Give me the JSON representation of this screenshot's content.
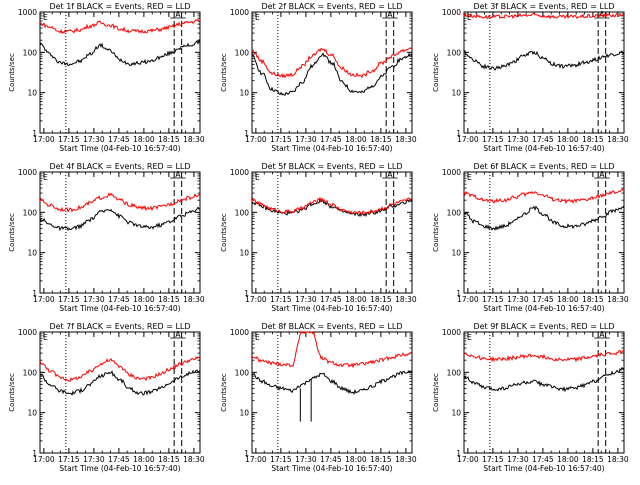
{
  "figure": {
    "background": "#ffffff",
    "colors": {
      "events": "#000000",
      "lld": "#ff0000",
      "axes": "#000000"
    },
    "x_ticks": [
      "17:00",
      "17:15",
      "17:30",
      "17:45",
      "18:00",
      "18:15",
      "18:30"
    ],
    "y_ticks": [
      "1",
      "10",
      "100",
      "1000"
    ],
    "ylabel": "Counts/sec",
    "xlabel": "Start Time (04-Feb-10 16:57:40)",
    "corner_mark": "E",
    "top_mark": "A",
    "top_mark_right": "E",
    "panels_note": "3x3 grid of detector count-rate time series"
  },
  "chart_data": [
    {
      "type": "line",
      "title": "Det 1f BLACK = Events, RED = LLD",
      "xlabel": "Start Time (04-Feb-10 16:57:40)",
      "ylabel": "Counts/sec",
      "x_unit": "minutes after 16:57:40",
      "xlim": [
        0,
        96
      ],
      "ylim": [
        1,
        1000
      ],
      "yscale": "log",
      "x": [
        0,
        6,
        12,
        18,
        24,
        30,
        36,
        42,
        48,
        54,
        60,
        66,
        72,
        78,
        84,
        90,
        96
      ],
      "series": [
        {
          "name": "BLACK = Events",
          "color": "#000000",
          "values": [
            160,
            90,
            55,
            52,
            60,
            90,
            150,
            110,
            65,
            52,
            55,
            60,
            75,
            95,
            130,
            150,
            180
          ]
        },
        {
          "name": "RED = LLD",
          "color": "#ff0000",
          "values": [
            520,
            420,
            330,
            330,
            360,
            450,
            540,
            470,
            380,
            340,
            330,
            340,
            370,
            420,
            500,
            560,
            620
          ]
        }
      ],
      "vlines": [
        {
          "x": 15.5,
          "style": "dotted"
        },
        {
          "x": 80.5,
          "style": "dashed"
        },
        {
          "x": 85,
          "style": "dashed"
        }
      ]
    },
    {
      "type": "line",
      "title": "Det 2f BLACK = Events, RED = LLD",
      "xlabel": "Start Time (04-Feb-10 16:57:40)",
      "ylabel": "Counts/sec",
      "x_unit": "minutes after 16:57:40",
      "xlim": [
        0,
        96
      ],
      "ylim": [
        1,
        1000
      ],
      "yscale": "log",
      "x": [
        0,
        6,
        12,
        18,
        24,
        30,
        36,
        42,
        48,
        54,
        60,
        66,
        72,
        78,
        84,
        90,
        96
      ],
      "series": [
        {
          "name": "BLACK = Events",
          "color": "#000000",
          "values": [
            80,
            30,
            12,
            9,
            10,
            18,
            45,
            90,
            55,
            18,
            11,
            10,
            15,
            25,
            45,
            70,
            90
          ]
        },
        {
          "name": "RED = LLD",
          "color": "#ff0000",
          "values": [
            110,
            60,
            30,
            26,
            28,
            45,
            80,
            120,
            85,
            40,
            28,
            26,
            35,
            55,
            80,
            110,
            130
          ]
        }
      ],
      "vlines": [
        {
          "x": 15.5,
          "style": "dotted"
        },
        {
          "x": 80.5,
          "style": "dashed"
        },
        {
          "x": 85,
          "style": "dashed"
        }
      ]
    },
    {
      "type": "line",
      "title": "Det 3f BLACK = Events, RED = LLD",
      "xlabel": "Start Time (04-Feb-10 16:57:40)",
      "ylabel": "Counts/sec",
      "x_unit": "minutes after 16:57:40",
      "xlim": [
        0,
        96
      ],
      "ylim": [
        1,
        1000
      ],
      "yscale": "log",
      "x": [
        0,
        6,
        12,
        18,
        24,
        30,
        36,
        42,
        48,
        54,
        60,
        66,
        72,
        78,
        84,
        90,
        96
      ],
      "series": [
        {
          "name": "BLACK = Events",
          "color": "#000000",
          "values": [
            100,
            65,
            45,
            40,
            45,
            60,
            85,
            100,
            70,
            50,
            45,
            48,
            55,
            65,
            80,
            90,
            100
          ]
        },
        {
          "name": "RED = LLD",
          "color": "#ff0000",
          "values": [
            850,
            800,
            760,
            750,
            770,
            790,
            820,
            840,
            800,
            760,
            750,
            760,
            780,
            800,
            820,
            830,
            850
          ]
        }
      ],
      "vlines": [
        {
          "x": 15.5,
          "style": "dotted"
        },
        {
          "x": 80.5,
          "style": "dashed"
        },
        {
          "x": 85,
          "style": "dashed"
        }
      ]
    },
    {
      "type": "line",
      "title": "Det 4f BLACK = Events, RED = LLD",
      "xlabel": "Start Time (04-Feb-10 16:57:40)",
      "ylabel": "Counts/sec",
      "x_unit": "minutes after 16:57:40",
      "xlim": [
        0,
        96
      ],
      "ylim": [
        1,
        1000
      ],
      "yscale": "log",
      "x": [
        0,
        6,
        12,
        18,
        24,
        30,
        36,
        42,
        48,
        54,
        60,
        66,
        72,
        78,
        84,
        90,
        96
      ],
      "series": [
        {
          "name": "BLACK = Events",
          "color": "#000000",
          "values": [
            70,
            50,
            40,
            38,
            45,
            65,
            100,
            120,
            80,
            55,
            45,
            42,
            48,
            60,
            80,
            100,
            130
          ]
        },
        {
          "name": "RED = LLD",
          "color": "#ff0000",
          "values": [
            200,
            150,
            120,
            115,
            130,
            170,
            230,
            270,
            200,
            150,
            130,
            125,
            135,
            160,
            200,
            230,
            280
          ]
        }
      ],
      "vlines": [
        {
          "x": 15.5,
          "style": "dotted"
        },
        {
          "x": 80.5,
          "style": "dashed"
        },
        {
          "x": 85,
          "style": "dashed"
        }
      ]
    },
    {
      "type": "line",
      "title": "Det 5f BLACK = Events, RED = LLD",
      "xlabel": "Start Time (04-Feb-10 16:57:40)",
      "ylabel": "Counts/sec",
      "x_unit": "minutes after 16:57:40",
      "xlim": [
        0,
        96
      ],
      "ylim": [
        1,
        1000
      ],
      "yscale": "log",
      "x": [
        0,
        6,
        12,
        18,
        24,
        30,
        36,
        42,
        48,
        54,
        60,
        66,
        72,
        78,
        84,
        90,
        96
      ],
      "series": [
        {
          "name": "BLACK = Events",
          "color": "#000000",
          "values": [
            180,
            140,
            110,
            95,
            95,
            115,
            160,
            190,
            140,
            105,
            90,
            88,
            95,
            110,
            140,
            170,
            200
          ]
        },
        {
          "name": "RED = LLD",
          "color": "#ff0000",
          "values": [
            200,
            155,
            120,
            105,
            105,
            125,
            175,
            210,
            155,
            115,
            100,
            98,
            105,
            125,
            155,
            185,
            220
          ]
        }
      ],
      "vlines": [
        {
          "x": 15.5,
          "style": "dotted"
        },
        {
          "x": 80.5,
          "style": "dashed"
        },
        {
          "x": 85,
          "style": "dashed"
        }
      ]
    },
    {
      "type": "line",
      "title": "Det 6f BLACK = Events, RED = LLD",
      "xlabel": "Start Time (04-Feb-10 16:57:40)",
      "ylabel": "Counts/sec",
      "x_unit": "minutes after 16:57:40",
      "xlim": [
        0,
        96
      ],
      "ylim": [
        1,
        1000
      ],
      "yscale": "log",
      "x": [
        0,
        6,
        12,
        18,
        24,
        30,
        36,
        42,
        48,
        54,
        60,
        66,
        72,
        78,
        84,
        90,
        96
      ],
      "series": [
        {
          "name": "BLACK = Events",
          "color": "#000000",
          "values": [
            100,
            60,
            45,
            40,
            45,
            60,
            90,
            130,
            90,
            55,
            45,
            45,
            50,
            65,
            85,
            110,
            140
          ]
        },
        {
          "name": "RED = LLD",
          "color": "#ff0000",
          "values": [
            300,
            250,
            200,
            190,
            200,
            230,
            280,
            320,
            260,
            210,
            190,
            190,
            200,
            230,
            270,
            310,
            350
          ]
        }
      ],
      "vlines": [
        {
          "x": 15.5,
          "style": "dotted"
        },
        {
          "x": 80.5,
          "style": "dashed"
        },
        {
          "x": 85,
          "style": "dashed"
        }
      ]
    },
    {
      "type": "line",
      "title": "Det 7f BLACK = Events, RED = LLD",
      "xlabel": "Start Time (04-Feb-10 16:57:40)",
      "ylabel": "Counts/sec",
      "x_unit": "minutes after 16:57:40",
      "xlim": [
        0,
        96
      ],
      "ylim": [
        1,
        1000
      ],
      "yscale": "log",
      "x": [
        0,
        6,
        12,
        18,
        24,
        30,
        36,
        42,
        48,
        54,
        60,
        66,
        72,
        78,
        84,
        90,
        96
      ],
      "series": [
        {
          "name": "BLACK = Events",
          "color": "#000000",
          "values": [
            90,
            50,
            35,
            30,
            35,
            50,
            80,
            100,
            65,
            38,
            30,
            32,
            40,
            55,
            75,
            95,
            110
          ]
        },
        {
          "name": "RED = LLD",
          "color": "#ff0000",
          "values": [
            180,
            110,
            75,
            65,
            75,
            105,
            160,
            200,
            140,
            85,
            70,
            72,
            90,
            120,
            160,
            200,
            230
          ]
        }
      ],
      "vlines": [
        {
          "x": 15.5,
          "style": "dotted"
        },
        {
          "x": 80.5,
          "style": "dashed"
        },
        {
          "x": 85,
          "style": "dashed"
        }
      ]
    },
    {
      "type": "line",
      "title": "Det 8f BLACK = Events, RED = LLD",
      "xlabel": "Start Time (04-Feb-10 16:57:40)",
      "ylabel": "Counts/sec",
      "x_unit": "minutes after 16:57:40",
      "xlim": [
        0,
        96
      ],
      "ylim": [
        1,
        1000
      ],
      "yscale": "log",
      "x": [
        0,
        6,
        12,
        18,
        24,
        30,
        36,
        42,
        48,
        54,
        60,
        66,
        72,
        78,
        84,
        90,
        96
      ],
      "series": [
        {
          "name": "BLACK = Events",
          "color": "#000000",
          "values": [
            90,
            60,
            45,
            40,
            35,
            50,
            70,
            90,
            60,
            40,
            32,
            35,
            45,
            60,
            80,
            95,
            110
          ]
        },
        {
          "name": "RED = LLD",
          "color": "#ff0000",
          "values": [
            250,
            190,
            170,
            160,
            150,
            1000,
            1000,
            220,
            170,
            150,
            150,
            160,
            180,
            200,
            240,
            270,
            300
          ]
        }
      ],
      "spikes": [
        {
          "x": 29,
          "from": 40,
          "to": 6,
          "color": "#000000"
        },
        {
          "x": 35.5,
          "from": 70,
          "to": 6,
          "color": "#000000"
        }
      ],
      "vlines": [
        {
          "x": 15.5,
          "style": "dotted"
        }
      ]
    },
    {
      "type": "line",
      "title": "Det 9f BLACK = Events, RED = LLD",
      "xlabel": "Start Time (04-Feb-10 16:57:40)",
      "ylabel": "Counts/sec",
      "x_unit": "minutes after 16:57:40",
      "xlim": [
        0,
        96
      ],
      "ylim": [
        1,
        1000
      ],
      "yscale": "log",
      "x": [
        0,
        6,
        12,
        18,
        24,
        30,
        36,
        42,
        48,
        54,
        60,
        66,
        72,
        78,
        84,
        90,
        96
      ],
      "series": [
        {
          "name": "BLACK = Events",
          "color": "#000000",
          "values": [
            80,
            55,
            42,
            38,
            40,
            48,
            55,
            58,
            50,
            42,
            38,
            40,
            48,
            60,
            80,
            100,
            120
          ]
        },
        {
          "name": "RED = LLD",
          "color": "#ff0000",
          "values": [
            300,
            250,
            220,
            210,
            215,
            230,
            250,
            260,
            240,
            215,
            205,
            210,
            225,
            250,
            280,
            300,
            330
          ]
        }
      ],
      "vlines": [
        {
          "x": 15.5,
          "style": "dotted"
        },
        {
          "x": 80.5,
          "style": "dashed"
        },
        {
          "x": 85,
          "style": "dashed"
        }
      ]
    }
  ]
}
